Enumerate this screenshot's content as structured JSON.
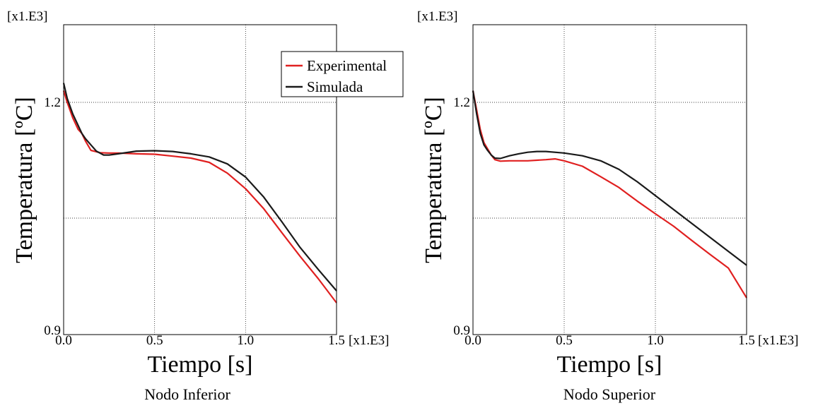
{
  "chart_data": [
    {
      "type": "line",
      "caption": "Nodo Inferior",
      "xlabel": "Tiempo [s]",
      "ylabel": "Temperatura [ºC]",
      "x_multiplier": "[x1.E3]",
      "y_multiplier": "[x1.E3]",
      "xlim": [
        0,
        1.5
      ],
      "ylim": [
        0.9,
        1.245
      ],
      "xticks": [
        "0.0",
        "0.5",
        "1.0",
        "1.5"
      ],
      "yticks": [
        "0.9",
        "1.2"
      ],
      "grid": true,
      "legend": {
        "position": "top-right",
        "entries": [
          "Experimental",
          "Simulada"
        ]
      },
      "series": [
        {
          "name": "Experimental",
          "color": "#e02020",
          "x": [
            0.0,
            0.02,
            0.05,
            0.08,
            0.1,
            0.12,
            0.15,
            0.2,
            0.25,
            0.3,
            0.4,
            0.5,
            0.6,
            0.7,
            0.8,
            0.9,
            1.0,
            1.1,
            1.2,
            1.3,
            1.4,
            1.5
          ],
          "y": [
            1.215,
            1.2,
            1.18,
            1.165,
            1.16,
            1.15,
            1.138,
            1.135,
            1.1345,
            1.1345,
            1.1335,
            1.133,
            1.1305,
            1.128,
            1.1225,
            1.1085,
            1.0885,
            1.0625,
            1.0315,
            1.001,
            0.972,
            0.941
          ]
        },
        {
          "name": "Simulada",
          "color": "#1a1a1a",
          "x": [
            0.0,
            0.02,
            0.05,
            0.08,
            0.1,
            0.12,
            0.15,
            0.18,
            0.22,
            0.25,
            0.3,
            0.4,
            0.5,
            0.6,
            0.7,
            0.8,
            0.9,
            1.0,
            1.1,
            1.2,
            1.3,
            1.4,
            1.5
          ],
          "y": [
            1.225,
            1.205,
            1.185,
            1.17,
            1.16,
            1.153,
            1.145,
            1.137,
            1.132,
            1.132,
            1.1335,
            1.137,
            1.1375,
            1.1365,
            1.1335,
            1.1295,
            1.1205,
            1.1035,
            1.0775,
            1.0455,
            1.0125,
            0.984,
            0.9565
          ]
        }
      ]
    },
    {
      "type": "line",
      "caption": "Nodo Superior",
      "xlabel": "Tiempo [s]",
      "ylabel": "Temperatura [ºC]",
      "x_multiplier": "[x1.E3]",
      "y_multiplier": "[x1.E3]",
      "xlim": [
        0,
        1.5
      ],
      "ylim": [
        0.9,
        1.245
      ],
      "xticks": [
        "0.0",
        "0.5",
        "1.0",
        "1.5"
      ],
      "yticks": [
        "0.9",
        "1.2"
      ],
      "grid": true,
      "series": [
        {
          "name": "Experimental",
          "color": "#e02020",
          "x": [
            0.0,
            0.02,
            0.04,
            0.06,
            0.08,
            0.1,
            0.12,
            0.15,
            0.2,
            0.3,
            0.4,
            0.45,
            0.5,
            0.6,
            0.7,
            0.8,
            0.9,
            1.0,
            1.1,
            1.2,
            1.3,
            1.4,
            1.5
          ],
          "y": [
            1.215,
            1.19,
            1.165,
            1.148,
            1.14,
            1.132,
            1.126,
            1.124,
            1.1245,
            1.1245,
            1.126,
            1.127,
            1.1245,
            1.1175,
            1.104,
            1.09,
            1.0725,
            1.056,
            1.04,
            1.0215,
            1.0035,
            0.986,
            0.9475
          ]
        },
        {
          "name": "Simulada",
          "color": "#1a1a1a",
          "x": [
            0.0,
            0.02,
            0.04,
            0.06,
            0.08,
            0.1,
            0.12,
            0.15,
            0.2,
            0.25,
            0.3,
            0.35,
            0.4,
            0.5,
            0.6,
            0.7,
            0.8,
            0.9,
            1.0,
            1.1,
            1.2,
            1.3,
            1.4,
            1.5
          ],
          "y": [
            1.215,
            1.185,
            1.16,
            1.145,
            1.138,
            1.132,
            1.128,
            1.1275,
            1.131,
            1.1335,
            1.1355,
            1.1365,
            1.1365,
            1.1345,
            1.131,
            1.1245,
            1.1135,
            1.0975,
            1.0795,
            1.0615,
            1.0435,
            1.0255,
            1.0075,
            0.9895
          ]
        }
      ]
    }
  ]
}
